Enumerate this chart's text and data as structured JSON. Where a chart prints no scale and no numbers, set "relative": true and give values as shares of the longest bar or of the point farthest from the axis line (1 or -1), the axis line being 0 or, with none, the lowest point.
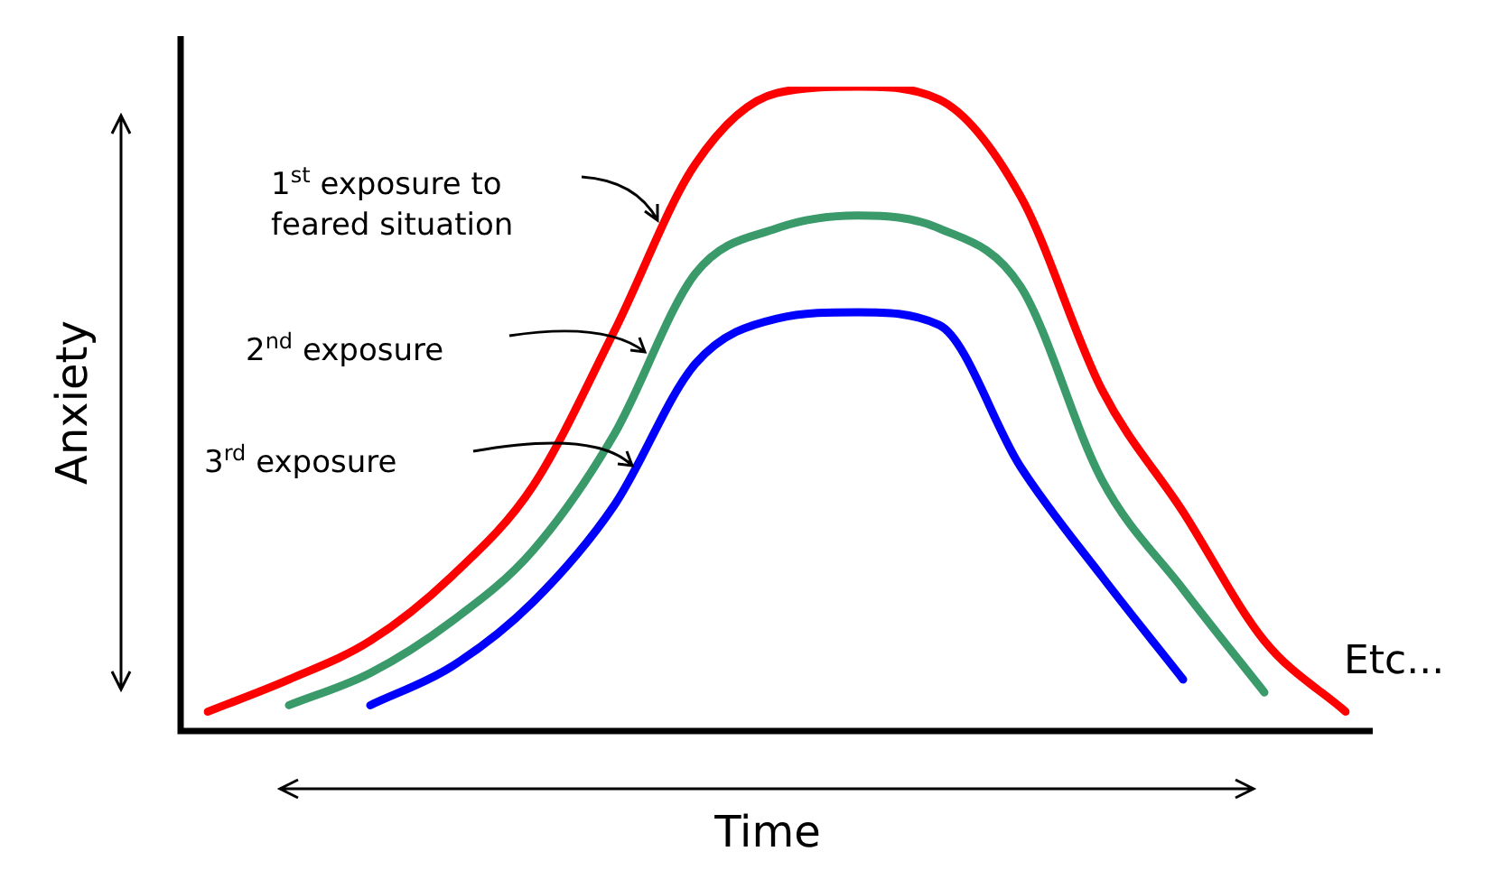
{
  "chart_data": {
    "type": "line",
    "relative": true,
    "xlabel": "Time",
    "ylabel": "Anxiety",
    "legend": false,
    "tick_labels": false,
    "marker": "none",
    "categories": [
      null,
      null,
      null,
      null,
      null,
      null,
      null,
      null,
      null,
      null,
      null,
      null,
      null,
      null,
      null
    ],
    "series": [
      {
        "color": "#ff0000",
        "values": [
          0.03,
          0.08,
          0.14,
          0.24,
          0.38,
          0.62,
          0.88,
          0.99,
          1.0,
          0.98,
          0.83,
          0.53,
          0.34,
          0.14,
          0.03
        ]
      },
      {
        "color": "#3a9a6a",
        "values": [
          null,
          0.04,
          0.09,
          0.17,
          0.28,
          0.46,
          0.71,
          0.78,
          0.8,
          0.78,
          0.69,
          0.39,
          0.22,
          0.06,
          null
        ]
      },
      {
        "color": "#0000ff",
        "values": [
          null,
          null,
          0.04,
          0.1,
          0.2,
          0.35,
          0.57,
          0.64,
          0.65,
          0.63,
          0.41,
          0.24,
          0.08,
          null,
          null
        ]
      }
    ],
    "annotations": [
      "1$^{st}$ exposure to feared situation",
      "2$^{nd}$ exposure",
      "3$^{rd}$ exposure",
      "Etc..."
    ]
  }
}
